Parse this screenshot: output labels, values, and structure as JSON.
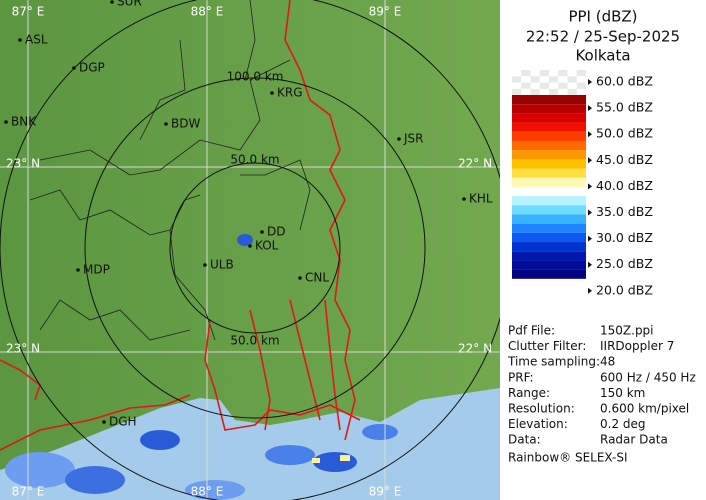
{
  "map": {
    "grid_labels": [
      "87° E",
      "88° E",
      "89° E",
      "23° N",
      "22° N",
      "23° N",
      "22° N",
      "87° E",
      "88° E",
      "89° E"
    ],
    "range_labels": [
      "100.0 km",
      "50.0 km",
      "50.0 km"
    ],
    "cities": [
      "SUR",
      "ASL",
      "DGP",
      "BNK",
      "BDW",
      "KRG",
      "JSR",
      "KHL",
      "DD",
      "KOL",
      "ULB",
      "CNL",
      "MDP",
      "DGH"
    ]
  },
  "legend": {
    "title": "PPI (dBZ)",
    "time": "22:52 / 25-Sep-2025",
    "site": "Kolkata",
    "scale": [
      "60.0 dBZ",
      "55.0 dBZ",
      "50.0 dBZ",
      "45.0 dBZ",
      "40.0 dBZ",
      "35.0 dBZ",
      "30.0 dBZ",
      "25.0 dBZ",
      "20.0 dBZ"
    ]
  },
  "info": {
    "rows": [
      [
        "Pdf File:",
        "150Z.ppi"
      ],
      [
        "Clutter Filter:",
        "IIRDoppler 7"
      ],
      [
        "Time sampling:",
        "48"
      ],
      [
        "PRF:",
        "600 Hz / 450 Hz"
      ],
      [
        "Range:",
        "150 km"
      ],
      [
        "Resolution:",
        "0.600 km/pixel"
      ],
      [
        "Elevation:",
        "0.2 deg"
      ],
      [
        "Data:",
        "Radar Data"
      ]
    ],
    "footer": "Rainbow® SELEX-SI"
  }
}
